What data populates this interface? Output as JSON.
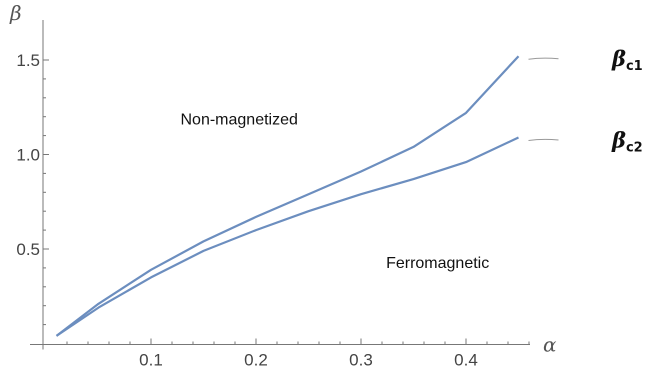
{
  "chart_data": {
    "type": "line",
    "xlabel": "α",
    "ylabel": "β",
    "xlim": [
      0,
      0.48
    ],
    "ylim": [
      0,
      1.6
    ],
    "x_ticks": [
      "0.1",
      "0.2",
      "0.3",
      "0.4"
    ],
    "y_ticks": [
      "0.5",
      "1.0",
      "1.5"
    ],
    "colors": {
      "curve": "#6c8ebf",
      "axis": "#777777",
      "leader": "#999999"
    },
    "series": [
      {
        "name": "",
        "label_symbol": "β",
        "label_sub": "c1",
        "x": [
          0.01,
          0.05,
          0.1,
          0.15,
          0.2,
          0.25,
          0.3,
          0.35,
          0.4,
          0.45
        ],
        "y": [
          0.04,
          0.21,
          0.39,
          0.54,
          0.67,
          0.79,
          0.91,
          1.04,
          1.22,
          1.52
        ]
      },
      {
        "name": "",
        "label_symbol": "β",
        "label_sub": "c2",
        "x": [
          0.01,
          0.05,
          0.1,
          0.15,
          0.2,
          0.25,
          0.3,
          0.35,
          0.4,
          0.45
        ],
        "y": [
          0.04,
          0.19,
          0.35,
          0.49,
          0.6,
          0.7,
          0.79,
          0.87,
          0.96,
          1.09
        ]
      }
    ],
    "annotations": [
      {
        "text": "Non-magnetized",
        "x": 0.184,
        "y": 1.19
      },
      {
        "text": "Ferromagnetic",
        "x": 0.373,
        "y": 0.43
      }
    ]
  }
}
